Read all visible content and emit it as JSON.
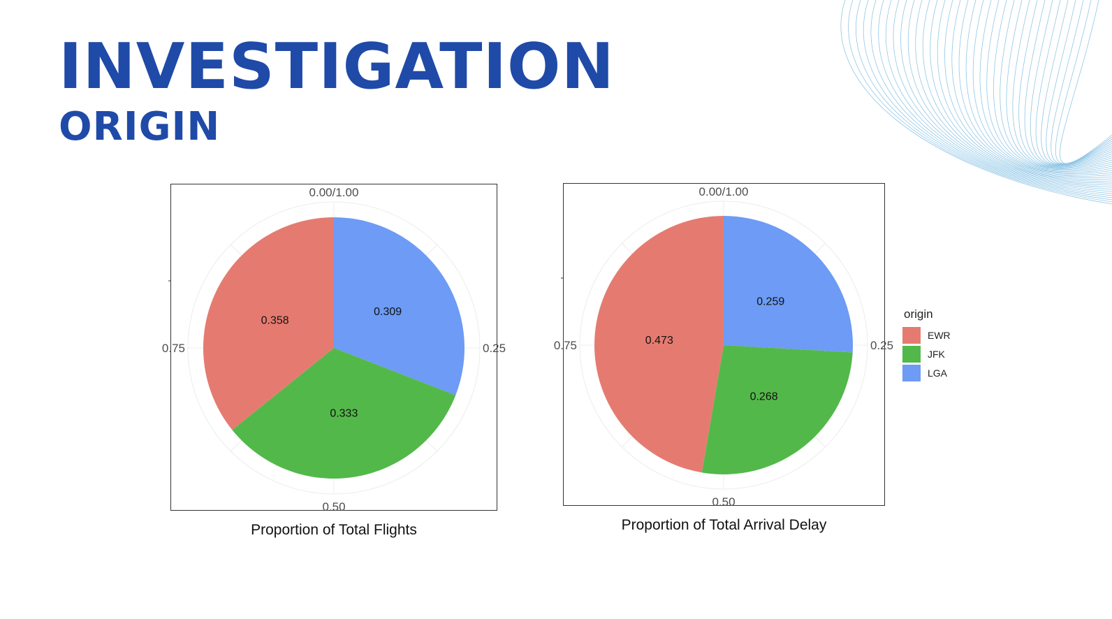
{
  "slide": {
    "title": "INVESTIGATION",
    "subtitle": "ORIGIN"
  },
  "chart_data": [
    {
      "type": "pie",
      "xlabel": "Proportion of Total Flights",
      "angular_ticks": [
        "0.00/1.00",
        "0.25",
        "0.50",
        "0.75"
      ],
      "categories": [
        "EWR",
        "JFK",
        "LGA"
      ],
      "values": [
        0.358,
        0.333,
        0.309
      ],
      "labels": [
        "0.358",
        "0.333",
        "0.309"
      ],
      "direction": "clockwise",
      "order_from_top": [
        "LGA",
        "JFK",
        "EWR"
      ]
    },
    {
      "type": "pie",
      "xlabel": "Proportion of Total Arrival Delay",
      "angular_ticks": [
        "0.00/1.00",
        "0.25",
        "0.50",
        "0.75"
      ],
      "categories": [
        "EWR",
        "JFK",
        "LGA"
      ],
      "values": [
        0.473,
        0.268,
        0.259
      ],
      "labels": [
        "0.473",
        "0.268",
        "0.259"
      ],
      "direction": "clockwise",
      "order_from_top": [
        "LGA",
        "JFK",
        "EWR"
      ]
    }
  ],
  "legend": {
    "title": "origin",
    "placement": "right",
    "items": [
      {
        "label": "EWR",
        "color": "#e57b70"
      },
      {
        "label": "JFK",
        "color": "#53b84a"
      },
      {
        "label": "LGA",
        "color": "#6d9bf5"
      }
    ]
  }
}
